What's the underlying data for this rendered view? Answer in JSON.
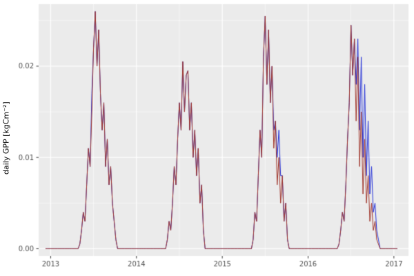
{
  "chart_data": {
    "type": "line",
    "title": "",
    "xlabel": "",
    "ylabel": "daily GPP [kgCm⁻²]",
    "legend": "none",
    "grid": true,
    "panel_bg": "#EBEBEB",
    "figure_bg": "#FFFFFF",
    "grid_major_color": "#FFFFFF",
    "grid_minor_color": "rgba(255,255,255,0.7)",
    "tick_mark_color": "#333333",
    "tick_label_color": "#4D4D4D",
    "xlim": [
      2012.86,
      2017.17
    ],
    "ylim": [
      -0.0008,
      0.0268
    ],
    "x_ticks": {
      "values": [
        2013,
        2014,
        2015,
        2016,
        2017
      ],
      "labels": [
        "2013",
        "2014",
        "2015",
        "2016",
        "2017"
      ]
    },
    "x_minor_ticks": [
      2013.5,
      2014.5,
      2015.5,
      2016.5
    ],
    "y_ticks": {
      "values": [
        0,
        0.01,
        0.02
      ],
      "labels": [
        "0.00",
        "0.01",
        "0.02"
      ]
    },
    "y_minor_ticks": [
      0.005,
      0.015,
      0.025
    ],
    "x_start": 2012.94,
    "x_step": 0.02,
    "series": [
      {
        "name": "series-blue",
        "color": "#2431D8",
        "values": [
          0,
          0,
          0,
          0,
          0,
          0,
          0,
          0,
          0,
          0,
          0,
          0,
          0,
          0,
          0,
          0,
          0,
          0,
          0,
          0,
          0.0005,
          0.002,
          0.004,
          0.003,
          0.007,
          0.011,
          0.009,
          0.017,
          0.022,
          0.026,
          0.02,
          0.024,
          0.017,
          0.013,
          0.016,
          0.009,
          0.012,
          0.007,
          0.009,
          0.005,
          0.003,
          0.001,
          0,
          0,
          0,
          0,
          0,
          0,
          0,
          0,
          0,
          0,
          0,
          0,
          0,
          0,
          0,
          0,
          0,
          0,
          0,
          0,
          0,
          0,
          0,
          0,
          0,
          0,
          0,
          0,
          0,
          0.001,
          0.003,
          0.002,
          0.005,
          0.009,
          0.007,
          0.012,
          0.016,
          0.013,
          0.0205,
          0.015,
          0.019,
          0.0195,
          0.013,
          0.016,
          0.01,
          0.013,
          0.008,
          0.011,
          0.005,
          0.007,
          0.002,
          0,
          0,
          0,
          0,
          0,
          0,
          0,
          0,
          0,
          0,
          0,
          0,
          0,
          0,
          0,
          0,
          0,
          0,
          0,
          0,
          0,
          0,
          0,
          0,
          0,
          0,
          0,
          0,
          0.001,
          0.004,
          0.003,
          0.008,
          0.013,
          0.01,
          0.021,
          0.0255,
          0.018,
          0.024,
          0.016,
          0.02,
          0.013,
          0.014,
          0.01,
          0.013,
          0.008,
          0.008,
          0.003,
          0.005,
          0.001,
          0,
          0,
          0,
          0,
          0,
          0,
          0,
          0,
          0,
          0,
          0,
          0,
          0,
          0,
          0,
          0,
          0,
          0,
          0,
          0,
          0,
          0,
          0,
          0,
          0,
          0,
          0,
          0,
          0,
          0.0005,
          0.002,
          0.004,
          0.003,
          0.007,
          0.012,
          0.016,
          0.0245,
          0.019,
          0.023,
          0.018,
          0.023,
          0.013,
          0.021,
          0.01,
          0.018,
          0.008,
          0.014,
          0.006,
          0.009,
          0.004,
          0.005,
          0.002,
          0.001,
          0,
          0,
          0,
          0,
          0,
          0,
          0,
          0,
          0,
          0,
          0
        ]
      },
      {
        "name": "series-dark-red",
        "color": "#A0342A",
        "values": [
          0,
          0,
          0,
          0,
          0,
          0,
          0,
          0,
          0,
          0,
          0,
          0,
          0,
          0,
          0,
          0,
          0,
          0,
          0,
          0,
          0.0005,
          0.002,
          0.004,
          0.003,
          0.007,
          0.011,
          0.009,
          0.015,
          0.022,
          0.026,
          0.02,
          0.024,
          0.017,
          0.013,
          0.016,
          0.009,
          0.012,
          0.007,
          0.009,
          0.005,
          0.003,
          0.001,
          0,
          0,
          0,
          0,
          0,
          0,
          0,
          0,
          0,
          0,
          0,
          0,
          0,
          0,
          0,
          0,
          0,
          0,
          0,
          0,
          0,
          0,
          0,
          0,
          0,
          0,
          0,
          0,
          0,
          0.001,
          0.003,
          0.002,
          0.005,
          0.009,
          0.007,
          0.012,
          0.016,
          0.013,
          0.0205,
          0.015,
          0.019,
          0.0195,
          0.013,
          0.016,
          0.01,
          0.013,
          0.008,
          0.011,
          0.005,
          0.007,
          0.002,
          0,
          0,
          0,
          0,
          0,
          0,
          0,
          0,
          0,
          0,
          0,
          0,
          0,
          0,
          0,
          0,
          0,
          0,
          0,
          0,
          0,
          0,
          0,
          0,
          0,
          0,
          0,
          0,
          0.001,
          0.004,
          0.003,
          0.008,
          0.013,
          0.01,
          0.021,
          0.0255,
          0.018,
          0.024,
          0.016,
          0.02,
          0.011,
          0.014,
          0.007,
          0.01,
          0.005,
          0.008,
          0.003,
          0.005,
          0.001,
          0,
          0,
          0,
          0,
          0,
          0,
          0,
          0,
          0,
          0,
          0,
          0,
          0,
          0,
          0,
          0,
          0,
          0,
          0,
          0,
          0,
          0,
          0,
          0,
          0,
          0,
          0,
          0,
          0,
          0.0005,
          0.002,
          0.004,
          0.003,
          0.007,
          0.012,
          0.016,
          0.0245,
          0.019,
          0.023,
          0.014,
          0.021,
          0.009,
          0.015,
          0.006,
          0.012,
          0.005,
          0.008,
          0.003,
          0.005,
          0.002,
          0.003,
          0.001,
          0.0005,
          0,
          0,
          0,
          0,
          0,
          0,
          0,
          0,
          0,
          0,
          0
        ]
      }
    ]
  }
}
